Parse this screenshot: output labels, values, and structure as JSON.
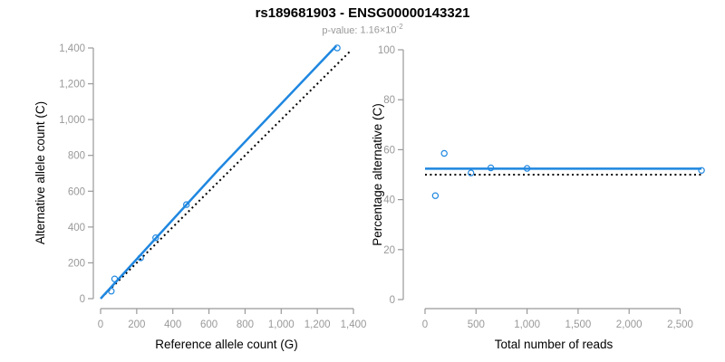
{
  "header": {
    "title": "rs189681903 - ENSG00000143321",
    "pvalue": {
      "label": "p-value:",
      "base": "1.16×10",
      "exponent": "-2"
    }
  },
  "colors": {
    "accent_blue": "#1f87e0",
    "dotted_black": "#000000",
    "axis_gray": "#999999",
    "tick_text_gray": "#999999",
    "title_black": "#000000"
  },
  "chart_data": [
    {
      "type": "scatter",
      "title": "",
      "xlabel": "Reference allele count (G)",
      "ylabel": "Alternative allele count (C)",
      "xlim": [
        0,
        1400
      ],
      "ylim": [
        0,
        1400
      ],
      "grid": false,
      "legend": null,
      "xticks": [
        0,
        200,
        400,
        600,
        800,
        1000,
        1200,
        1400
      ],
      "xtick_labels": [
        "0",
        "200",
        "400",
        "600",
        "800",
        "1,000",
        "1,200",
        "1,400"
      ],
      "yticks": [
        0,
        200,
        400,
        600,
        800,
        1000,
        1200,
        1400
      ],
      "ytick_labels": [
        "0",
        "200",
        "400",
        "600",
        "800",
        "1,000",
        "1,200",
        "1,400"
      ],
      "points": [
        [
          59,
          42
        ],
        [
          78,
          110
        ],
        [
          222,
          228
        ],
        [
          305,
          340
        ],
        [
          475,
          525
        ],
        [
          1310,
          1400
        ]
      ],
      "lines": [
        {
          "name": "identity-line",
          "style": "dotted",
          "color": "dotted_black",
          "width": 2,
          "points": [
            [
              5,
              5
            ],
            [
              1385,
              1385
            ]
          ]
        },
        {
          "name": "fit-line",
          "style": "solid",
          "color": "accent_blue",
          "width": 2.5,
          "points": [
            [
              0,
              0
            ],
            [
              650,
              717
            ],
            [
              1305,
              1412
            ]
          ]
        }
      ]
    },
    {
      "type": "scatter",
      "title": "",
      "xlabel": "Total number of reads",
      "ylabel": "Percentage alternative (C)",
      "xlim": [
        0,
        2500
      ],
      "ylim": [
        0,
        100
      ],
      "grid": false,
      "legend": null,
      "xticks": [
        0,
        500,
        1000,
        1500,
        2000,
        2500
      ],
      "xtick_labels": [
        "0",
        "500",
        "1,000",
        "1,500",
        "2,000",
        "2,500"
      ],
      "yticks": [
        0,
        20,
        40,
        60,
        80,
        100
      ],
      "ytick_labels": [
        "0",
        "20",
        "40",
        "60",
        "80",
        "100"
      ],
      "points": [
        [
          101,
          41.6
        ],
        [
          188,
          58.5
        ],
        [
          450,
          50.7
        ],
        [
          645,
          52.7
        ],
        [
          1000,
          52.5
        ],
        [
          2710,
          51.7
        ]
      ],
      "lines": [
        {
          "name": "expected-50pct-line",
          "style": "dotted",
          "color": "dotted_black",
          "width": 2,
          "points": [
            [
              0,
              50
            ],
            [
              2710,
              50
            ]
          ]
        },
        {
          "name": "fitted-percentage-line",
          "style": "solid",
          "color": "accent_blue",
          "width": 2.5,
          "points": [
            [
              0,
              52.4
            ],
            [
              2710,
              52.4
            ]
          ]
        }
      ]
    }
  ]
}
